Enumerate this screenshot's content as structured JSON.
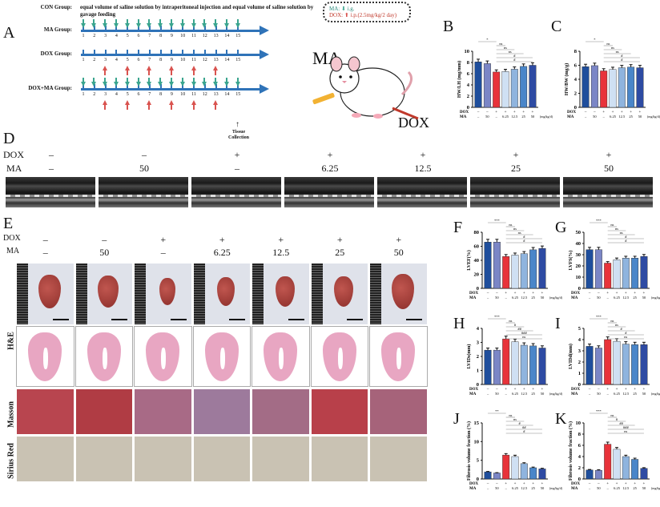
{
  "panel_a": {
    "letter": "A",
    "con_group_label": "CON Group:",
    "con_group_text": "equal volume of saline solution by intraperitoneal injection and equal volume of saline solution by gavage feeding",
    "groups": [
      {
        "label": "MA Group:",
        "ma_days": [
          1,
          2,
          3,
          4,
          5,
          6,
          7,
          8,
          9,
          10,
          11,
          12,
          13,
          14,
          15
        ],
        "dox_days": []
      },
      {
        "label": "DOX Group:",
        "ma_days": [],
        "dox_days": [
          3,
          5,
          7,
          9,
          11,
          13
        ]
      },
      {
        "label": "DOX+MA Group:",
        "ma_days": [
          1,
          2,
          3,
          4,
          5,
          6,
          7,
          8,
          9,
          10,
          11,
          12,
          13,
          14,
          15
        ],
        "dox_days": [
          3,
          5,
          7,
          9,
          11,
          13
        ]
      }
    ],
    "days": [
      "1",
      "2",
      "3",
      "4",
      "5",
      "6",
      "7",
      "8",
      "9",
      "10",
      "11",
      "12",
      "13",
      "14",
      "15"
    ],
    "tissue_collection": "Tissue Collection",
    "legend": {
      "ma_label": "MA:",
      "ma_route": "i.g.",
      "dox_label": "DOX:",
      "dox_route": "i.p.(2.5mg/kg/2 day)"
    },
    "mouse_labels": {
      "ma": "MA",
      "dox": "DOX"
    }
  },
  "conditions": {
    "dox_label": "DOX",
    "ma_label": "MA",
    "dox": [
      "–",
      "–",
      "+",
      "+",
      "+",
      "+",
      "+"
    ],
    "ma": [
      "–",
      "50",
      "–",
      "6.25",
      "12.5",
      "25",
      "50"
    ],
    "unit": "(mg/kg/d)"
  },
  "panel_d": {
    "letter": "D"
  },
  "panel_e": {
    "letter": "E",
    "row_labels": [
      "H&E",
      "Masson",
      "Sirius Red"
    ]
  },
  "colors": {
    "con": "#1f4e9c",
    "ma50": "#7b86c6",
    "dox": "#e8333a",
    "ma6_25": "#cfe0f3",
    "ma12_5": "#8fb4de",
    "ma25": "#4a86c9",
    "ma50_dox": "#2e4ba3"
  },
  "chart_data": [
    {
      "panel": "B",
      "type": "bar",
      "ylabel": "HW/LH (mg/mm)",
      "ylim": [
        0,
        10
      ],
      "yticks": [
        0,
        2,
        4,
        6,
        8,
        10
      ],
      "categories": [
        "CON",
        "MA50",
        "DOX",
        "DOX+MA6.25",
        "DOX+MA12.5",
        "DOX+MA25",
        "DOX+MA50"
      ],
      "values": [
        8.1,
        7.8,
        6.3,
        6.4,
        6.8,
        7.3,
        7.5
      ],
      "significance": [
        "* (CON vs DOX)",
        "ns",
        "ns",
        "ns",
        "# ",
        "#"
      ]
    },
    {
      "panel": "C",
      "type": "bar",
      "ylabel": "HW/BW (mg/g)",
      "ylim": [
        0,
        8
      ],
      "yticks": [
        0,
        2,
        4,
        6,
        8
      ],
      "categories": [
        "CON",
        "MA50",
        "DOX",
        "DOX+MA6.25",
        "DOX+MA12.5",
        "DOX+MA25",
        "DOX+MA50"
      ],
      "values": [
        5.8,
        5.95,
        5.2,
        5.4,
        5.65,
        5.75,
        5.65
      ],
      "significance": [
        "* (CON vs DOX)",
        "ns",
        "ns",
        "ns",
        "#",
        "#"
      ]
    },
    {
      "panel": "F",
      "type": "bar",
      "ylabel": "LVEF(%)",
      "ylim": [
        0,
        80
      ],
      "yticks": [
        0,
        20,
        40,
        60,
        80
      ],
      "categories": [
        "CON",
        "MA50",
        "DOX",
        "DOX+MA6.25",
        "DOX+MA12.5",
        "DOX+MA25",
        "DOX+MA50"
      ],
      "values": [
        66,
        66,
        45.5,
        47.5,
        49.5,
        55,
        57
      ],
      "significance": [
        "*** (CON vs DOX)",
        "ns",
        "ns",
        "ns",
        "#",
        "#"
      ]
    },
    {
      "panel": "G",
      "type": "bar",
      "ylabel": "LVFS(%)",
      "ylim": [
        0,
        50
      ],
      "yticks": [
        0,
        10,
        20,
        30,
        40,
        50
      ],
      "categories": [
        "CON",
        "MA50",
        "DOX",
        "DOX+MA6.25",
        "DOX+MA12.5",
        "DOX+MA25",
        "DOX+MA50"
      ],
      "values": [
        34.5,
        34.5,
        22.5,
        25.5,
        27,
        27,
        28.5
      ],
      "significance": [
        "*** (CON vs DOX)",
        "ns",
        "ns",
        "ns",
        "#",
        "#"
      ]
    },
    {
      "panel": "H",
      "type": "bar",
      "ylabel": "LVIDs(mm)",
      "ylim": [
        0,
        4
      ],
      "yticks": [
        0,
        1,
        2,
        3,
        4
      ],
      "categories": [
        "CON",
        "MA50",
        "DOX",
        "DOX+MA6.25",
        "DOX+MA12.5",
        "DOX+MA25",
        "DOX+MA50"
      ],
      "values": [
        2.45,
        2.45,
        3.25,
        3.05,
        2.8,
        2.75,
        2.6
      ],
      "significance": [
        "*** (CON vs DOX)",
        "ns",
        "#",
        "##",
        "###",
        "ns"
      ]
    },
    {
      "panel": "I",
      "type": "bar",
      "ylabel": "LVIDd(mm)",
      "ylim": [
        0,
        5
      ],
      "yticks": [
        0,
        1,
        2,
        3,
        4,
        5
      ],
      "categories": [
        "CON",
        "MA50",
        "DOX",
        "DOX+MA6.25",
        "DOX+MA12.5",
        "DOX+MA25",
        "DOX+MA50"
      ],
      "values": [
        3.4,
        3.25,
        4.0,
        3.85,
        3.6,
        3.55,
        3.55
      ],
      "significance": [
        "*** (CON vs DOX)",
        "ns",
        "ns",
        "#",
        "#",
        "ns"
      ]
    },
    {
      "panel": "J",
      "type": "bar",
      "ylabel": "Fibrosis volume fraction (%)",
      "ylim": [
        0,
        15
      ],
      "yticks": [
        0,
        5,
        10,
        15
      ],
      "categories": [
        "CON",
        "MA50",
        "DOX",
        "DOX+MA6.25",
        "DOX+MA12.5",
        "DOX+MA25",
        "DOX+MA50"
      ],
      "values": [
        1.9,
        1.6,
        6.4,
        6.0,
        4.1,
        3.0,
        2.7
      ],
      "significance": [
        "** (CON vs DOX)",
        "ns",
        "ns",
        "#",
        "##",
        "#"
      ]
    },
    {
      "panel": "K",
      "type": "bar",
      "ylabel": "Fibrosis volume fraction (%)",
      "ylim": [
        0,
        10
      ],
      "yticks": [
        0,
        2,
        4,
        6,
        8,
        10
      ],
      "categories": [
        "CON",
        "MA50",
        "DOX",
        "DOX+MA6.25",
        "DOX+MA12.5",
        "DOX+MA25",
        "DOX+MA50"
      ],
      "values": [
        1.6,
        1.55,
        6.2,
        5.3,
        4.0,
        3.5,
        1.9
      ],
      "significance": [
        "*** (CON vs DOX)",
        "ns",
        "#",
        "##",
        "###",
        "ns"
      ]
    }
  ]
}
